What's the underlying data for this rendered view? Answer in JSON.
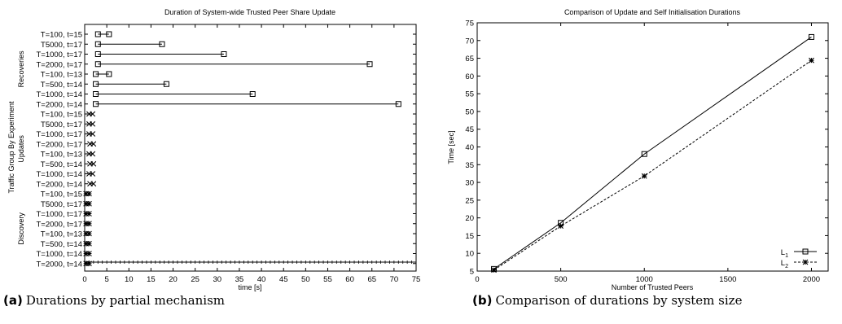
{
  "chart_data": [
    {
      "type": "range",
      "title": "Duration of System-wide Trusted Peer Share Update",
      "xlabel": "time [s]",
      "ylabel": "Traffic Group By Experiment",
      "xlim": [
        0,
        75
      ],
      "xticks": [
        0,
        5,
        10,
        15,
        20,
        25,
        30,
        35,
        40,
        45,
        50,
        55,
        60,
        65,
        70,
        75
      ],
      "groups": [
        {
          "name": "Recoveries",
          "marker": "square",
          "rows": [
            {
              "label": "T=100, t=15",
              "start": 3,
              "end": 5.5
            },
            {
              "label": "T5000, t=17",
              "start": 3,
              "end": 17.5
            },
            {
              "label": "T=1000, t=17",
              "start": 3,
              "end": 31.5
            },
            {
              "label": "T=2000, t=17",
              "start": 3,
              "end": 64.5
            },
            {
              "label": "T=100, t=13",
              "start": 2.5,
              "end": 5.5
            },
            {
              "label": "T=500, t=14",
              "start": 2.5,
              "end": 18.5
            },
            {
              "label": "T=1000, t=14",
              "start": 2.5,
              "end": 38
            },
            {
              "label": "T=2000, t=14",
              "start": 2.5,
              "end": 71
            }
          ]
        },
        {
          "name": "Updates",
          "marker": "x",
          "rows": [
            {
              "label": "T=100, t=15",
              "start": 1,
              "end": 1.8
            },
            {
              "label": "T5000, t=17",
              "start": 1,
              "end": 1.8
            },
            {
              "label": "T=1000, t=17",
              "start": 1,
              "end": 1.8
            },
            {
              "label": "T=2000, t=17",
              "start": 1.2,
              "end": 2
            },
            {
              "label": "T=100, t=13",
              "start": 1,
              "end": 1.8
            },
            {
              "label": "T=500, t=14",
              "start": 1.2,
              "end": 2
            },
            {
              "label": "T=1000, t=14",
              "start": 1,
              "end": 1.8
            },
            {
              "label": "T=2000, t=14",
              "start": 1.2,
              "end": 2
            }
          ]
        },
        {
          "name": "Discovery",
          "marker": "star",
          "rows": [
            {
              "label": "T=100, t=15",
              "start": 0.3,
              "end": 1
            },
            {
              "label": "T5000, t=17",
              "start": 0.3,
              "end": 1
            },
            {
              "label": "T=1000, t=17",
              "start": 0.3,
              "end": 1
            },
            {
              "label": "T=2000, t=17",
              "start": 0.3,
              "end": 1
            },
            {
              "label": "T=100, t=13",
              "start": 0.3,
              "end": 1
            },
            {
              "label": "T=500, t=14",
              "start": 0.3,
              "end": 1
            },
            {
              "label": "T=1000, t=14",
              "start": 0.3,
              "end": 1
            },
            {
              "label": "T=2000, t=14",
              "start": 0.3,
              "end": 1
            }
          ]
        }
      ]
    },
    {
      "type": "line",
      "title": "Comparison of Update and Self Initialisation Durations",
      "xlabel": "Number of Trusted Peers",
      "ylabel": "Time [sec]",
      "xlim": [
        0,
        2100
      ],
      "ylim": [
        5,
        75
      ],
      "xticks": [
        0,
        500,
        1000,
        1500,
        2000
      ],
      "yticks": [
        5,
        10,
        15,
        20,
        25,
        30,
        35,
        40,
        45,
        50,
        55,
        60,
        65,
        70,
        75
      ],
      "x": [
        100,
        500,
        1000,
        2000
      ],
      "series": [
        {
          "name": "L1",
          "name_main": "L",
          "name_sub": "1",
          "marker": "square",
          "dash": "solid",
          "values": [
            5.6,
            18.6,
            38,
            71
          ]
        },
        {
          "name": "L2",
          "name_main": "L",
          "name_sub": "2",
          "marker": "star",
          "dash": "dashed",
          "values": [
            5.3,
            17.7,
            31.8,
            64.4
          ]
        }
      ],
      "legend_position": "bottom-right"
    }
  ],
  "captions": [
    {
      "tag": "(a)",
      "text": "Durations by partial mechanism"
    },
    {
      "tag": "(b)",
      "text": "Comparison of durations by system size"
    }
  ]
}
